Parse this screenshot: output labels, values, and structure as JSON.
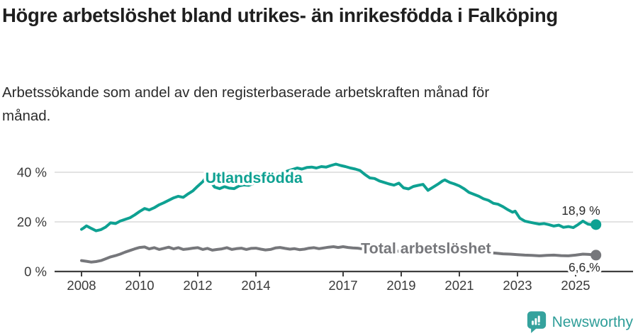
{
  "header": {
    "title": "Högre arbetslöshet bland utrikes- än inrikesfödda i Falköping",
    "subtitle": "Arbetssökande som andel av den registerbaserade arbetskraften månad för månad."
  },
  "footer": {
    "brand": "Newsworthy",
    "logo_icon": "bar-chart-speech-bubble-icon",
    "brand_color": "#2f9e99",
    "icon_color": "#35a29d"
  },
  "chart_data": {
    "type": "line",
    "title": "Arbetslöshet i Falköping",
    "xlabel": "",
    "ylabel": "",
    "grid": "horizontal-y",
    "xlim": [
      2007.1,
      2026.1
    ],
    "ylim": [
      0,
      45
    ],
    "x_ticks": {
      "years": [
        2008,
        2010,
        2012,
        2014,
        2017,
        2019,
        2021,
        2023,
        2025
      ],
      "labels": [
        "2008",
        "2010",
        "2012",
        "2014",
        "2017",
        "2019",
        "2021",
        "2023",
        "2025"
      ]
    },
    "y_ticks": {
      "values": [
        0,
        20,
        40
      ],
      "labels": [
        "0 %",
        "20 %",
        "40 %"
      ]
    },
    "colors": {
      "grid": "#dadada",
      "axis": "#3f3f3f",
      "tick_label": "#3a3a3a",
      "value_label": "#2b2b2b"
    },
    "series": [
      {
        "id": "utlandsfodda",
        "name": "Utlandsfödda",
        "color": "#0ea192",
        "label_anchor": {
          "year": 2013.93,
          "value": 37.8
        },
        "end_label": "18,9 %",
        "end_value": 18.9,
        "points": [
          [
            2008.0,
            17.0
          ],
          [
            2008.08,
            17.6
          ],
          [
            2008.17,
            18.4
          ],
          [
            2008.33,
            17.4
          ],
          [
            2008.5,
            16.4
          ],
          [
            2008.67,
            16.9
          ],
          [
            2008.83,
            17.9
          ],
          [
            2009.0,
            19.6
          ],
          [
            2009.17,
            19.3
          ],
          [
            2009.33,
            20.3
          ],
          [
            2009.5,
            21.0
          ],
          [
            2009.67,
            21.7
          ],
          [
            2009.83,
            22.8
          ],
          [
            2010.0,
            24.2
          ],
          [
            2010.17,
            25.4
          ],
          [
            2010.33,
            24.8
          ],
          [
            2010.5,
            25.7
          ],
          [
            2010.67,
            26.9
          ],
          [
            2010.83,
            27.7
          ],
          [
            2011.0,
            28.7
          ],
          [
            2011.17,
            29.7
          ],
          [
            2011.33,
            30.3
          ],
          [
            2011.5,
            29.9
          ],
          [
            2011.67,
            31.3
          ],
          [
            2011.83,
            32.5
          ],
          [
            2012.0,
            34.4
          ],
          [
            2012.17,
            36.2
          ],
          [
            2012.25,
            37.4
          ],
          [
            2012.42,
            36.5
          ],
          [
            2012.58,
            34.0
          ],
          [
            2012.75,
            33.4
          ],
          [
            2012.92,
            34.2
          ],
          [
            2013.08,
            33.6
          ],
          [
            2013.25,
            33.4
          ],
          [
            2013.42,
            34.5
          ],
          [
            2013.58,
            34.9
          ],
          [
            2013.75,
            34.7
          ],
          [
            2013.92,
            35.5
          ],
          [
            2014.08,
            36.3
          ],
          [
            2014.25,
            36.9
          ],
          [
            2014.42,
            37.9
          ],
          [
            2014.58,
            38.5
          ],
          [
            2014.75,
            39.3
          ],
          [
            2014.92,
            39.7
          ],
          [
            2015.08,
            40.5
          ],
          [
            2015.25,
            41.1
          ],
          [
            2015.42,
            41.7
          ],
          [
            2015.58,
            41.3
          ],
          [
            2015.75,
            41.9
          ],
          [
            2015.92,
            42.1
          ],
          [
            2016.08,
            41.7
          ],
          [
            2016.25,
            42.3
          ],
          [
            2016.42,
            42.1
          ],
          [
            2016.58,
            42.7
          ],
          [
            2016.75,
            43.3
          ],
          [
            2016.92,
            42.7
          ],
          [
            2017.08,
            42.3
          ],
          [
            2017.25,
            41.7
          ],
          [
            2017.42,
            41.3
          ],
          [
            2017.58,
            40.7
          ],
          [
            2017.75,
            39.1
          ],
          [
            2017.92,
            37.7
          ],
          [
            2018.08,
            37.5
          ],
          [
            2018.25,
            36.5
          ],
          [
            2018.42,
            35.9
          ],
          [
            2018.58,
            35.3
          ],
          [
            2018.75,
            34.8
          ],
          [
            2018.92,
            35.6
          ],
          [
            2019.08,
            33.7
          ],
          [
            2019.25,
            33.3
          ],
          [
            2019.42,
            34.3
          ],
          [
            2019.58,
            34.7
          ],
          [
            2019.75,
            35.1
          ],
          [
            2019.92,
            32.7
          ],
          [
            2020.08,
            33.9
          ],
          [
            2020.25,
            35.1
          ],
          [
            2020.42,
            36.5
          ],
          [
            2020.5,
            36.9
          ],
          [
            2020.67,
            35.9
          ],
          [
            2020.83,
            35.3
          ],
          [
            2021.0,
            34.5
          ],
          [
            2021.17,
            33.3
          ],
          [
            2021.33,
            31.9
          ],
          [
            2021.5,
            31.1
          ],
          [
            2021.67,
            30.3
          ],
          [
            2021.83,
            29.3
          ],
          [
            2022.0,
            28.7
          ],
          [
            2022.17,
            27.5
          ],
          [
            2022.33,
            27.1
          ],
          [
            2022.5,
            26.1
          ],
          [
            2022.67,
            24.9
          ],
          [
            2022.83,
            23.9
          ],
          [
            2022.92,
            24.3
          ],
          [
            2023.08,
            21.5
          ],
          [
            2023.25,
            20.3
          ],
          [
            2023.42,
            19.9
          ],
          [
            2023.58,
            19.5
          ],
          [
            2023.75,
            19.1
          ],
          [
            2023.92,
            19.3
          ],
          [
            2024.08,
            18.9
          ],
          [
            2024.25,
            18.3
          ],
          [
            2024.42,
            18.7
          ],
          [
            2024.58,
            17.8
          ],
          [
            2024.75,
            18.1
          ],
          [
            2024.92,
            17.7
          ],
          [
            2025.08,
            18.9
          ],
          [
            2025.25,
            20.3
          ],
          [
            2025.42,
            19.1
          ],
          [
            2025.58,
            18.8
          ],
          [
            2025.7,
            18.9
          ]
        ]
      },
      {
        "id": "total",
        "name": "Total arbetslöshet",
        "color": "#76777b",
        "label_anchor": {
          "year": 2019.85,
          "value": 9.5
        },
        "end_label": "6,6 %",
        "end_value": 6.6,
        "points": [
          [
            2008.0,
            4.4
          ],
          [
            2008.17,
            4.1
          ],
          [
            2008.33,
            3.8
          ],
          [
            2008.5,
            4.0
          ],
          [
            2008.67,
            4.4
          ],
          [
            2008.83,
            5.1
          ],
          [
            2009.0,
            5.9
          ],
          [
            2009.17,
            6.4
          ],
          [
            2009.33,
            7.0
          ],
          [
            2009.5,
            7.8
          ],
          [
            2009.67,
            8.5
          ],
          [
            2009.83,
            9.1
          ],
          [
            2010.0,
            9.7
          ],
          [
            2010.17,
            9.9
          ],
          [
            2010.33,
            9.1
          ],
          [
            2010.5,
            9.6
          ],
          [
            2010.67,
            8.9
          ],
          [
            2010.83,
            9.3
          ],
          [
            2011.0,
            9.8
          ],
          [
            2011.17,
            9.1
          ],
          [
            2011.33,
            9.6
          ],
          [
            2011.5,
            8.9
          ],
          [
            2011.67,
            9.1
          ],
          [
            2011.83,
            9.4
          ],
          [
            2012.0,
            9.6
          ],
          [
            2012.17,
            8.9
          ],
          [
            2012.33,
            9.3
          ],
          [
            2012.5,
            8.6
          ],
          [
            2012.67,
            8.9
          ],
          [
            2012.83,
            9.1
          ],
          [
            2013.0,
            9.6
          ],
          [
            2013.17,
            8.9
          ],
          [
            2013.33,
            9.2
          ],
          [
            2013.5,
            9.4
          ],
          [
            2013.67,
            8.9
          ],
          [
            2013.83,
            9.3
          ],
          [
            2014.0,
            9.4
          ],
          [
            2014.17,
            9.0
          ],
          [
            2014.33,
            8.7
          ],
          [
            2014.5,
            8.9
          ],
          [
            2014.67,
            9.5
          ],
          [
            2014.83,
            9.7
          ],
          [
            2015.0,
            9.3
          ],
          [
            2015.17,
            9.0
          ],
          [
            2015.33,
            9.2
          ],
          [
            2015.5,
            8.8
          ],
          [
            2015.67,
            9.0
          ],
          [
            2015.83,
            9.4
          ],
          [
            2016.0,
            9.6
          ],
          [
            2016.17,
            9.2
          ],
          [
            2016.33,
            9.5
          ],
          [
            2016.5,
            9.8
          ],
          [
            2016.67,
            10.0
          ],
          [
            2016.83,
            9.7
          ],
          [
            2017.0,
            10.0
          ],
          [
            2017.17,
            9.7
          ],
          [
            2017.33,
            9.5
          ],
          [
            2017.5,
            9.4
          ],
          [
            2017.75,
            9.0
          ],
          [
            2018.0,
            8.8
          ],
          [
            2018.5,
            8.4
          ],
          [
            2019.0,
            8.1
          ],
          [
            2019.5,
            7.9
          ],
          [
            2020.0,
            8.3
          ],
          [
            2020.5,
            9.1
          ],
          [
            2021.0,
            8.7
          ],
          [
            2021.5,
            8.1
          ],
          [
            2022.0,
            7.6
          ],
          [
            2022.25,
            7.4
          ],
          [
            2022.5,
            7.1
          ],
          [
            2022.75,
            7.0
          ],
          [
            2023.0,
            6.8
          ],
          [
            2023.25,
            6.6
          ],
          [
            2023.5,
            6.5
          ],
          [
            2023.75,
            6.3
          ],
          [
            2024.0,
            6.5
          ],
          [
            2024.25,
            6.6
          ],
          [
            2024.5,
            6.4
          ],
          [
            2024.75,
            6.3
          ],
          [
            2025.0,
            6.6
          ],
          [
            2025.25,
            7.0
          ],
          [
            2025.45,
            6.9
          ],
          [
            2025.7,
            6.6
          ]
        ]
      }
    ]
  }
}
